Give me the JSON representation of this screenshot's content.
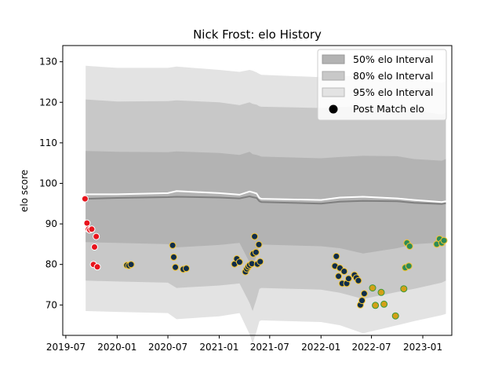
{
  "chart_data": {
    "type": "scatter",
    "title": "Nick Frost: elo History",
    "xlabel": "",
    "ylabel": "elo score",
    "xlim": [
      "2019-06-20",
      "2023-04-15"
    ],
    "ylim": [
      62.5,
      134
    ],
    "x_ticks": [
      "2019-07",
      "2020-01",
      "2020-07",
      "2021-01",
      "2021-07",
      "2022-01",
      "2022-07",
      "2023-01"
    ],
    "y_ticks": [
      70,
      80,
      90,
      100,
      110,
      120,
      130
    ],
    "legend": {
      "position": "top-right",
      "entries": [
        "50% elo Interval",
        "80% elo Interval",
        "95% elo Interval",
        "Post Match elo"
      ]
    },
    "colors": {
      "interval_50": "#b3b3b3",
      "interval_80": "#c8c8c8",
      "interval_95": "#e3e3e3",
      "mean_line": "#7f7f7f",
      "upper_line": "#ffffff",
      "point_red": "#e8141c",
      "point_navy": "#0f2d4a",
      "point_gold": "#d4a017",
      "point_green": "#2e8b57",
      "edge_light": "#ffffff",
      "edge_yellow": "#f4c430",
      "edge_green": "#3a9a3a"
    },
    "bands": {
      "dates": [
        "2019-09-10",
        "2020-01-01",
        "2020-07-01",
        "2020-08-01",
        "2021-01-01",
        "2021-03-15",
        "2021-04-20",
        "2021-05-01",
        "2021-05-15",
        "2021-05-25",
        "2021-06-01",
        "2022-01-01",
        "2022-03-10",
        "2022-06-01",
        "2022-10-01",
        "2022-12-01",
        "2023-03-10",
        "2023-03-25"
      ],
      "mean": [
        96.2,
        96.4,
        96.6,
        96.7,
        96.5,
        96.3,
        96.8,
        96.6,
        96.4,
        95.6,
        95.4,
        95.0,
        95.5,
        95.7,
        95.6,
        95.2,
        94.9,
        95.1
      ],
      "upper": [
        97.3,
        97.3,
        97.6,
        98.1,
        97.6,
        97.2,
        98.0,
        97.8,
        97.5,
        96.4,
        96.2,
        95.9,
        96.5,
        96.7,
        96.3,
        95.9,
        95.4,
        95.6
      ],
      "p50": [
        [
          85.5,
          108.0
        ],
        [
          85.3,
          107.8
        ],
        [
          85.0,
          107.7
        ],
        [
          84.2,
          107.9
        ],
        [
          84.8,
          107.5
        ],
        [
          85.3,
          107.0
        ],
        [
          80.5,
          107.8
        ],
        [
          79.5,
          107.2
        ],
        [
          82.2,
          107.0
        ],
        [
          84.7,
          106.8
        ],
        [
          84.9,
          106.6
        ],
        [
          84.5,
          106.2
        ],
        [
          84.0,
          106.5
        ],
        [
          82.7,
          106.8
        ],
        [
          84.0,
          106.7
        ],
        [
          85.0,
          106.0
        ],
        [
          85.4,
          105.6
        ],
        [
          85.5,
          106.0
        ]
      ],
      "p80": [
        [
          76.0,
          120.7
        ],
        [
          75.8,
          120.2
        ],
        [
          75.5,
          120.3
        ],
        [
          74.2,
          120.5
        ],
        [
          74.8,
          120.0
        ],
        [
          75.3,
          119.3
        ],
        [
          70.5,
          120.0
        ],
        [
          68.5,
          119.6
        ],
        [
          71.5,
          119.4
        ],
        [
          74.0,
          119.0
        ],
        [
          74.2,
          118.9
        ],
        [
          73.8,
          118.6
        ],
        [
          73.0,
          118.8
        ],
        [
          71.5,
          119.0
        ],
        [
          73.2,
          118.6
        ],
        [
          74.0,
          118.0
        ],
        [
          75.5,
          117.0
        ],
        [
          76.0,
          117.5
        ]
      ],
      "p95": [
        [
          68.5,
          129.0
        ],
        [
          68.3,
          128.5
        ],
        [
          68.0,
          128.5
        ],
        [
          66.5,
          128.8
        ],
        [
          67.2,
          128.0
        ],
        [
          68.0,
          127.5
        ],
        [
          62.8,
          128.0
        ],
        [
          60.5,
          127.8
        ],
        [
          63.5,
          127.4
        ],
        [
          66.0,
          127.0
        ],
        [
          66.2,
          126.8
        ],
        [
          65.8,
          126.2
        ],
        [
          65.0,
          126.4
        ],
        [
          63.0,
          126.7
        ],
        [
          65.0,
          126.2
        ],
        [
          66.0,
          125.6
        ],
        [
          67.5,
          124.8
        ],
        [
          67.8,
          125.2
        ]
      ]
    },
    "points": [
      {
        "x": "2019-09-08",
        "y": 96.2,
        "g": "red"
      },
      {
        "x": "2019-09-15",
        "y": 90.2,
        "g": "red"
      },
      {
        "x": "2019-09-20",
        "y": 88.7,
        "g": "red"
      },
      {
        "x": "2019-09-25",
        "y": 88.5,
        "g": "red"
      },
      {
        "x": "2019-10-02",
        "y": 88.7,
        "g": "red"
      },
      {
        "x": "2019-10-08",
        "y": 80.0,
        "g": "red"
      },
      {
        "x": "2019-10-12",
        "y": 84.3,
        "g": "red"
      },
      {
        "x": "2019-10-18",
        "y": 86.9,
        "g": "red"
      },
      {
        "x": "2019-10-22",
        "y": 79.4,
        "g": "red"
      },
      {
        "x": "2020-02-05",
        "y": 79.8,
        "g": "navy"
      },
      {
        "x": "2020-02-12",
        "y": 79.7,
        "g": "navy"
      },
      {
        "x": "2020-02-20",
        "y": 80.0,
        "g": "navy"
      },
      {
        "x": "2020-07-18",
        "y": 84.7,
        "g": "navy"
      },
      {
        "x": "2020-07-22",
        "y": 81.8,
        "g": "navy"
      },
      {
        "x": "2020-07-28",
        "y": 79.3,
        "g": "navy"
      },
      {
        "x": "2020-08-25",
        "y": 78.8,
        "g": "navy"
      },
      {
        "x": "2020-09-05",
        "y": 79.0,
        "g": "navy"
      },
      {
        "x": "2021-02-25",
        "y": 80.1,
        "g": "navy"
      },
      {
        "x": "2021-03-05",
        "y": 81.4,
        "g": "navy"
      },
      {
        "x": "2021-03-15",
        "y": 80.6,
        "g": "navy"
      },
      {
        "x": "2021-04-05",
        "y": 78.2,
        "g": "navy"
      },
      {
        "x": "2021-04-10",
        "y": 78.9,
        "g": "navy"
      },
      {
        "x": "2021-04-15",
        "y": 79.4,
        "g": "navy"
      },
      {
        "x": "2021-04-20",
        "y": 79.8,
        "g": "navy"
      },
      {
        "x": "2021-04-28",
        "y": 80.2,
        "g": "navy"
      },
      {
        "x": "2021-05-03",
        "y": 82.6,
        "g": "navy"
      },
      {
        "x": "2021-05-08",
        "y": 86.9,
        "g": "navy"
      },
      {
        "x": "2021-05-13",
        "y": 83.0,
        "g": "navy"
      },
      {
        "x": "2021-05-18",
        "y": 80.1,
        "g": "navy"
      },
      {
        "x": "2021-05-23",
        "y": 84.9,
        "g": "navy"
      },
      {
        "x": "2021-05-28",
        "y": 80.7,
        "g": "navy"
      },
      {
        "x": "2022-02-20",
        "y": 79.6,
        "g": "navy"
      },
      {
        "x": "2022-02-25",
        "y": 82.0,
        "g": "navy"
      },
      {
        "x": "2022-03-05",
        "y": 77.1,
        "g": "navy"
      },
      {
        "x": "2022-03-10",
        "y": 79.1,
        "g": "navy"
      },
      {
        "x": "2022-03-18",
        "y": 75.3,
        "g": "navy"
      },
      {
        "x": "2022-03-25",
        "y": 78.3,
        "g": "navy"
      },
      {
        "x": "2022-04-03",
        "y": 75.3,
        "g": "navy"
      },
      {
        "x": "2022-04-10",
        "y": 76.5,
        "g": "navy"
      },
      {
        "x": "2022-05-01",
        "y": 77.4,
        "g": "navy"
      },
      {
        "x": "2022-05-08",
        "y": 76.7,
        "g": "navy"
      },
      {
        "x": "2022-05-15",
        "y": 76.0,
        "g": "navy"
      },
      {
        "x": "2022-05-22",
        "y": 70.0,
        "g": "navy"
      },
      {
        "x": "2022-05-28",
        "y": 71.1,
        "g": "navy"
      },
      {
        "x": "2022-06-05",
        "y": 72.8,
        "g": "navy"
      },
      {
        "x": "2022-07-05",
        "y": 74.2,
        "g": "gold"
      },
      {
        "x": "2022-07-15",
        "y": 69.9,
        "g": "gold"
      },
      {
        "x": "2022-08-05",
        "y": 73.1,
        "g": "gold"
      },
      {
        "x": "2022-08-15",
        "y": 70.2,
        "g": "gold"
      },
      {
        "x": "2022-09-25",
        "y": 67.3,
        "g": "gold"
      },
      {
        "x": "2022-10-25",
        "y": 74.0,
        "g": "gold"
      },
      {
        "x": "2022-10-30",
        "y": 79.2,
        "g": "green"
      },
      {
        "x": "2022-11-05",
        "y": 85.3,
        "g": "green"
      },
      {
        "x": "2022-11-12",
        "y": 79.6,
        "g": "green"
      },
      {
        "x": "2022-11-15",
        "y": 84.5,
        "g": "green"
      },
      {
        "x": "2023-02-20",
        "y": 85.0,
        "g": "green"
      },
      {
        "x": "2023-03-02",
        "y": 86.3,
        "g": "green"
      },
      {
        "x": "2023-03-10",
        "y": 85.3,
        "g": "green"
      },
      {
        "x": "2023-03-18",
        "y": 85.9,
        "g": "green"
      }
    ]
  }
}
